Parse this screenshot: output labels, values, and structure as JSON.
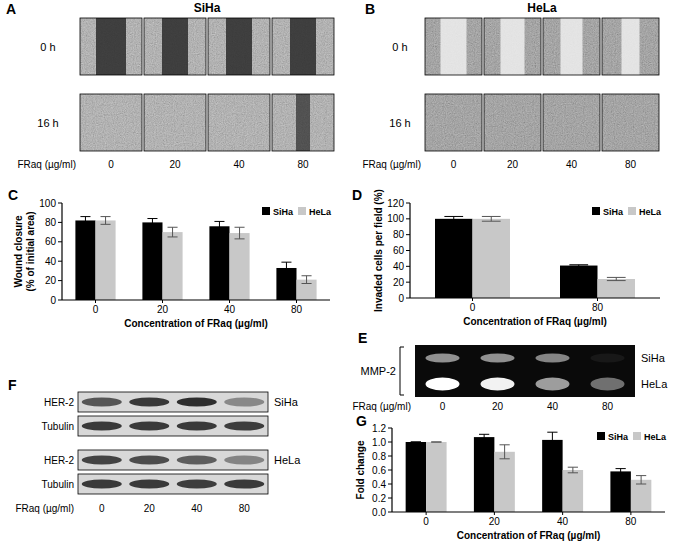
{
  "chart_data": [
    {
      "type": "bar",
      "annotations": [
        "C"
      ],
      "x_label": "Concentration of FRaq (µg/ml)",
      "y_label": [
        "Wound closure",
        "(% of initial area)"
      ],
      "categories": [
        "0",
        "20",
        "40",
        "80"
      ],
      "series": [
        {
          "name": "SiHa",
          "color": "#000000",
          "values": [
            82,
            80,
            76,
            33
          ],
          "errors": [
            4,
            4,
            5,
            6
          ]
        },
        {
          "name": "HeLa",
          "color": "#c8c8c8",
          "values": [
            82,
            70,
            69,
            21
          ],
          "errors": [
            4,
            5,
            6,
            4
          ]
        }
      ],
      "ylim": [
        0,
        100
      ],
      "yticks": [
        0,
        20,
        40,
        60,
        80,
        100
      ],
      "legend": "top-right"
    },
    {
      "type": "bar",
      "annotations": [
        "D"
      ],
      "x_label": "Concentration of FRaq (µg/ml)",
      "y_label": [
        "Invaded cells per field (%)"
      ],
      "categories": [
        "0",
        "80"
      ],
      "series": [
        {
          "name": "SiHa",
          "color": "#000000",
          "values": [
            100,
            41
          ],
          "errors": [
            3,
            1
          ]
        },
        {
          "name": "HeLa",
          "color": "#c8c8c8",
          "values": [
            100,
            24
          ],
          "errors": [
            3,
            2
          ]
        }
      ],
      "ylim": [
        0,
        120
      ],
      "yticks": [
        0,
        20,
        40,
        60,
        80,
        100,
        120
      ],
      "legend": "top-right"
    },
    {
      "type": "bar",
      "annotations": [
        "G"
      ],
      "x_label": "Concentration of FRaq (µg/ml)",
      "y_label": [
        "Fold change"
      ],
      "categories": [
        "0",
        "20",
        "40",
        "80"
      ],
      "series": [
        {
          "name": "SiHa",
          "color": "#000000",
          "values": [
            1.0,
            1.07,
            1.03,
            0.58
          ],
          "errors": [
            0,
            0.04,
            0.11,
            0.04
          ]
        },
        {
          "name": "HeLa",
          "color": "#c8c8c8",
          "values": [
            1.0,
            0.86,
            0.6,
            0.46
          ],
          "errors": [
            0,
            0.1,
            0.04,
            0.06
          ]
        }
      ],
      "ylim": [
        0,
        1.2
      ],
      "yticks": [
        {
          "value": 0,
          "label": "0.0"
        },
        {
          "value": 0.2,
          "label": "0.2"
        },
        {
          "value": 0.4,
          "label": "0.4"
        },
        {
          "value": 0.6,
          "label": "0.6"
        },
        {
          "value": 0.8,
          "label": "0.8"
        },
        {
          "value": 1.0,
          "label": "1.0"
        },
        {
          "value": 1.2,
          "label": "1.2"
        }
      ],
      "legend": "top-right"
    }
  ],
  "image_panels": [
    {
      "label": "A",
      "title": "SiHa",
      "rows": [
        "0 h",
        "16 h"
      ],
      "x_label": "FRaq (µg/ml)",
      "columns": [
        "0",
        "20",
        "40",
        "80"
      ]
    },
    {
      "label": "B",
      "title": "HeLa",
      "rows": [
        "0 h",
        "16 h"
      ],
      "x_label": "FRaq (µg/ml)",
      "columns": [
        "0",
        "20",
        "40",
        "80"
      ]
    },
    {
      "label": "E",
      "protein": "MMP-2",
      "rows": [
        "SiHa",
        "HeLa"
      ],
      "x_label": "FRaq (µg/ml)",
      "columns": [
        "0",
        "20",
        "40",
        "80"
      ]
    },
    {
      "label": "F",
      "groups": [
        {
          "cell": "SiHa",
          "blots": [
            "HER-2",
            "Tubulin"
          ]
        },
        {
          "cell": "HeLa",
          "blots": [
            "HER-2",
            "Tubulin"
          ]
        }
      ],
      "x_label": "FRaq (µg/ml)",
      "columns": [
        "0",
        "20",
        "40",
        "80"
      ]
    }
  ]
}
